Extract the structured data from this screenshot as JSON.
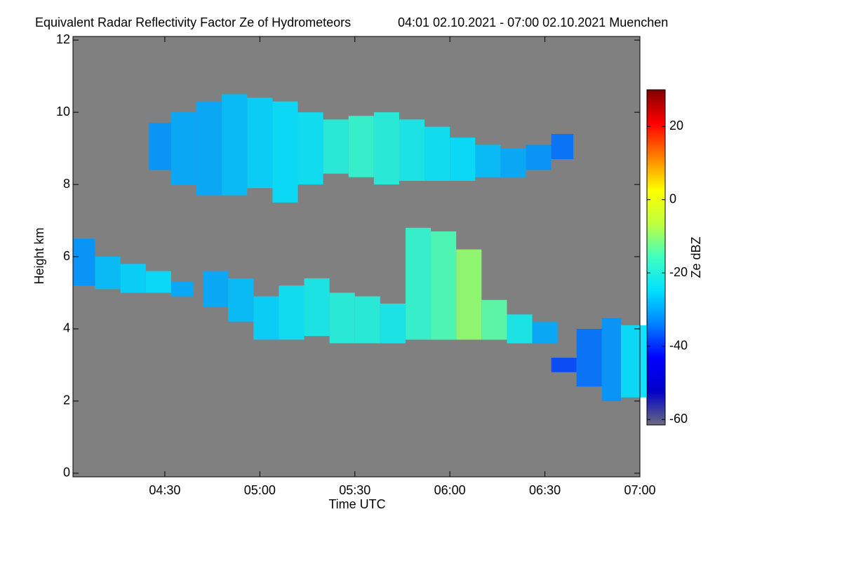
{
  "chart_data": {
    "type": "heatmap",
    "title": "Equivalent Radar Reflectivity Factor Ze of Hydrometeors",
    "subtitle": "04:01 02.10.2021 - 07:00 02.10.2021 Muenchen",
    "x_label": "Time UTC",
    "y_label": "Height km",
    "colorbar_label": "Ze dBZ",
    "background": "#808080",
    "xlim": [
      241,
      420
    ],
    "xticks": [
      {
        "value": 270,
        "label": "04:30"
      },
      {
        "value": 300,
        "label": "05:00"
      },
      {
        "value": 330,
        "label": "05:30"
      },
      {
        "value": 360,
        "label": "06:00"
      },
      {
        "value": 390,
        "label": "06:30"
      },
      {
        "value": 420,
        "label": "07:00"
      }
    ],
    "ylim": [
      -0.1,
      12.1
    ],
    "yticks": [
      0,
      2,
      4,
      6,
      8,
      10,
      12
    ],
    "clim": [
      -61.5,
      30
    ],
    "cticks": [
      20,
      0,
      -20,
      -40,
      -60
    ],
    "colormap": [
      "#6a6a80",
      "#0000c8",
      "#0000ff",
      "#0080ff",
      "#00e0ff",
      "#40ffc0",
      "#c0ff40",
      "#ffff00",
      "#ff8000",
      "#ff0000",
      "#800000"
    ],
    "layers": [
      {
        "x": [
          265,
          272,
          280,
          288,
          296,
          304,
          312,
          320,
          328,
          336,
          344,
          352,
          360,
          368,
          376,
          384,
          392
        ],
        "top": [
          9.7,
          10.0,
          10.3,
          10.5,
          10.4,
          10.3,
          10.0,
          9.8,
          9.9,
          10.0,
          9.8,
          9.6,
          9.3,
          9.1,
          9.0,
          9.1,
          9.4
        ],
        "base": [
          8.4,
          8.0,
          7.7,
          7.7,
          7.9,
          7.5,
          8.0,
          8.3,
          8.2,
          8.0,
          8.1,
          8.1,
          8.1,
          8.2,
          8.2,
          8.4,
          8.7
        ],
        "ze": [
          -32,
          -30,
          -30,
          -28,
          -26,
          -25,
          -24,
          -20,
          -18,
          -20,
          -22,
          -24,
          -25,
          -28,
          -30,
          -32,
          -35
        ]
      },
      {
        "x": [
          241,
          248,
          256,
          264,
          272
        ],
        "top": [
          6.5,
          6.0,
          5.8,
          5.6,
          5.3
        ],
        "base": [
          5.2,
          5.1,
          5.0,
          5.0,
          4.9
        ],
        "ze": [
          -32,
          -28,
          -26,
          -25,
          -30
        ]
      },
      {
        "x": [
          282,
          290,
          298,
          306,
          314,
          322,
          330,
          338,
          346,
          354,
          362,
          370,
          378,
          386
        ],
        "top": [
          5.6,
          5.4,
          4.9,
          5.2,
          5.4,
          5.0,
          4.9,
          4.7,
          6.8,
          6.7,
          6.2,
          4.8,
          4.4,
          4.2
        ],
        "base": [
          4.6,
          4.2,
          3.7,
          3.7,
          3.8,
          3.6,
          3.6,
          3.6,
          3.7,
          3.7,
          3.7,
          3.7,
          3.6,
          3.6
        ],
        "ze": [
          -30,
          -28,
          -26,
          -24,
          -22,
          -20,
          -20,
          -22,
          -18,
          -15,
          -10,
          -14,
          -22,
          -30
        ]
      },
      {
        "x": [
          392,
          400,
          408,
          414
        ],
        "top": [
          3.2,
          4.0,
          4.3,
          4.1
        ],
        "base": [
          2.8,
          2.4,
          2.0,
          2.1
        ],
        "ze": [
          -38,
          -35,
          -32,
          -25
        ]
      }
    ]
  }
}
